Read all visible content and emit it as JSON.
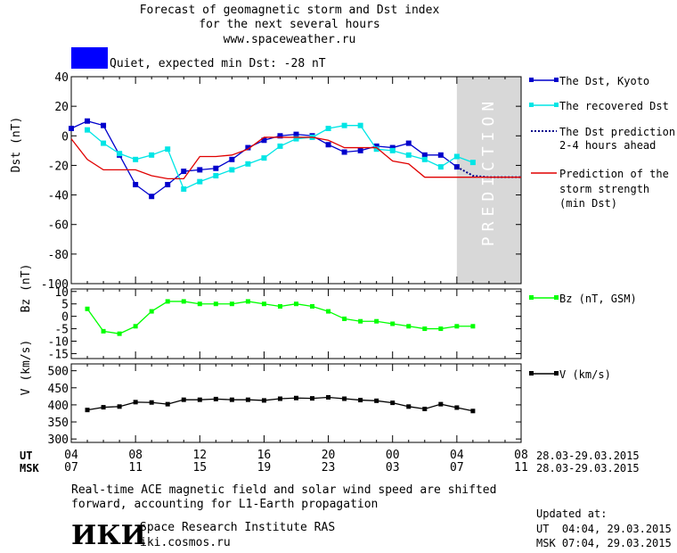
{
  "header": {
    "title_line1": "Forecast of geomagnetic storm and Dst index",
    "title_line2": "for the next several hours",
    "url": "www.spaceweather.ru",
    "status": "Quiet, expected min Dst: -28 nT",
    "status_color": "#0000ff"
  },
  "legend": {
    "dst_kyoto": "The Dst, Kyoto",
    "recovered_dst": "The recovered Dst",
    "prediction_line1": "The Dst prediction",
    "prediction_line2": "2-4 hours ahead",
    "storm_line1": "Prediction of the",
    "storm_line2": "storm strength",
    "storm_line3": "(min Dst)",
    "bz": "Bz (nT, GSM)",
    "v": "V (km/s)"
  },
  "time_axis": {
    "ut_label": "UT",
    "msk_label": "MSK",
    "ut_ticks": [
      "04",
      "08",
      "12",
      "16",
      "20",
      "00",
      "04",
      "08"
    ],
    "msk_ticks": [
      "07",
      "11",
      "15",
      "19",
      "23",
      "03",
      "07",
      "11"
    ],
    "ut_dates": "28.03-29.03.2015",
    "msk_dates": "28.03-29.03.2015"
  },
  "footer": {
    "note_line1": "Real-time ACE magnetic field and solar wind speed are shifted",
    "note_line2": "forward, accounting for L1-Earth propagation",
    "logo": "ИКИ",
    "institute": "Space Research Institute RAS",
    "site": "iki.cosmos.ru",
    "updated_title": "Updated at:",
    "updated_ut": "UT  04:04, 29.03.2015",
    "updated_msk": "MSK 07:04, 29.03.2015"
  },
  "chart_data": [
    {
      "type": "line",
      "name": "dst",
      "ylabel": "Dst (nT)",
      "ylim": [
        -100,
        40
      ],
      "yticks": [
        40,
        20,
        0,
        -20,
        -40,
        -60,
        -80,
        -100
      ],
      "xlim": [
        0,
        28
      ],
      "prediction_region": [
        24,
        28
      ],
      "prediction_text": "PREDICTION",
      "series": [
        {
          "name": "The Dst, Kyoto",
          "color": "#0000cc",
          "x": [
            0,
            1,
            2,
            3,
            4,
            5,
            6,
            7,
            8,
            9,
            10,
            11,
            12,
            13,
            14,
            15,
            16,
            17,
            18,
            19,
            20,
            21,
            22,
            23,
            24
          ],
          "y": [
            5,
            10,
            7,
            -13,
            -33,
            -41,
            -33,
            -24,
            -23,
            -22,
            -16,
            -8,
            -3,
            0,
            1,
            0,
            -6,
            -11,
            -10,
            -7,
            -8,
            -5,
            -13,
            -13,
            -21
          ]
        },
        {
          "name": "The recovered Dst",
          "color": "#00e5e5",
          "x": [
            1,
            2,
            3,
            4,
            5,
            6,
            7,
            8,
            9,
            10,
            11,
            12,
            13,
            14,
            15,
            16,
            17,
            18,
            19,
            20,
            21,
            22,
            23,
            24,
            25
          ],
          "y": [
            4,
            -5,
            -12,
            -16,
            -13,
            -9,
            -36,
            -31,
            -27,
            -23,
            -19,
            -15,
            -7,
            -2,
            -1,
            5,
            7,
            7,
            -9,
            -10,
            -13,
            -16,
            -21,
            -14,
            -18
          ]
        },
        {
          "name": "The Dst prediction 2-4 hours ahead",
          "color": "#00008b",
          "x": [
            24,
            25,
            26,
            27,
            28
          ],
          "y": [
            -21,
            -27,
            -28,
            -28,
            -28
          ]
        },
        {
          "name": "Prediction of the storm strength (min Dst)",
          "color": "#e00000",
          "x": [
            0,
            1,
            2,
            3,
            4,
            5,
            6,
            7,
            8,
            9,
            10,
            11,
            12,
            13,
            14,
            15,
            16,
            17,
            18,
            19,
            20,
            21,
            22,
            23,
            24,
            25,
            26,
            27,
            28
          ],
          "y": [
            -2,
            -16,
            -23,
            -23,
            -23,
            -27,
            -29,
            -29,
            -14,
            -14,
            -13,
            -9,
            -1,
            -1,
            -1,
            -1,
            -3,
            -8,
            -8,
            -8,
            -17,
            -19,
            -28,
            -28,
            -28,
            -28,
            -28,
            -28,
            -28
          ]
        }
      ]
    },
    {
      "type": "line",
      "name": "bz",
      "ylabel": "Bz (nT)",
      "ylim": [
        -17,
        11
      ],
      "yticks": [
        10,
        5,
        0,
        -5,
        -10,
        -15
      ],
      "xlim": [
        0,
        28
      ],
      "series": [
        {
          "name": "Bz (nT, GSM)",
          "color": "#00ff00",
          "x": [
            1,
            2,
            3,
            4,
            5,
            6,
            7,
            8,
            9,
            10,
            11,
            12,
            13,
            14,
            15,
            16,
            17,
            18,
            19,
            20,
            21,
            22,
            23,
            24,
            25
          ],
          "y": [
            3,
            -6,
            -7,
            -4,
            2,
            6,
            6,
            5,
            5,
            5,
            6,
            5,
            4,
            5,
            4,
            2,
            -1,
            -2,
            -2,
            -3,
            -4,
            -5,
            -5,
            -4,
            -4
          ]
        }
      ]
    },
    {
      "type": "line",
      "name": "v",
      "ylabel": "V (km/s)",
      "ylim": [
        290,
        520
      ],
      "yticks": [
        500,
        450,
        400,
        350,
        300
      ],
      "xlim": [
        0,
        28
      ],
      "series": [
        {
          "name": "V (km/s)",
          "color": "#000000",
          "x": [
            1,
            2,
            3,
            4,
            5,
            6,
            7,
            8,
            9,
            10,
            11,
            12,
            13,
            14,
            15,
            16,
            17,
            18,
            19,
            20,
            21,
            22,
            23,
            24,
            25
          ],
          "y": [
            385,
            393,
            395,
            408,
            407,
            402,
            415,
            415,
            417,
            415,
            415,
            413,
            418,
            420,
            419,
            422,
            418,
            414,
            412,
            406,
            395,
            388,
            402,
            392,
            382
          ]
        }
      ]
    }
  ]
}
